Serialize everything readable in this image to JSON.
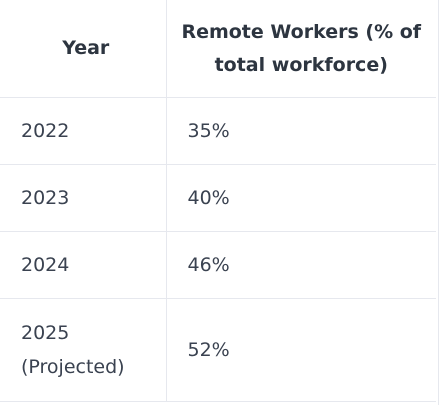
{
  "table": {
    "headers": [
      "Year",
      "Remote Workers (% of total workforce)"
    ],
    "rows": [
      [
        "2022",
        "35%"
      ],
      [
        "2023",
        "40%"
      ],
      [
        "2024",
        "46%"
      ],
      [
        "2025 (Projected)",
        "52%"
      ]
    ]
  }
}
